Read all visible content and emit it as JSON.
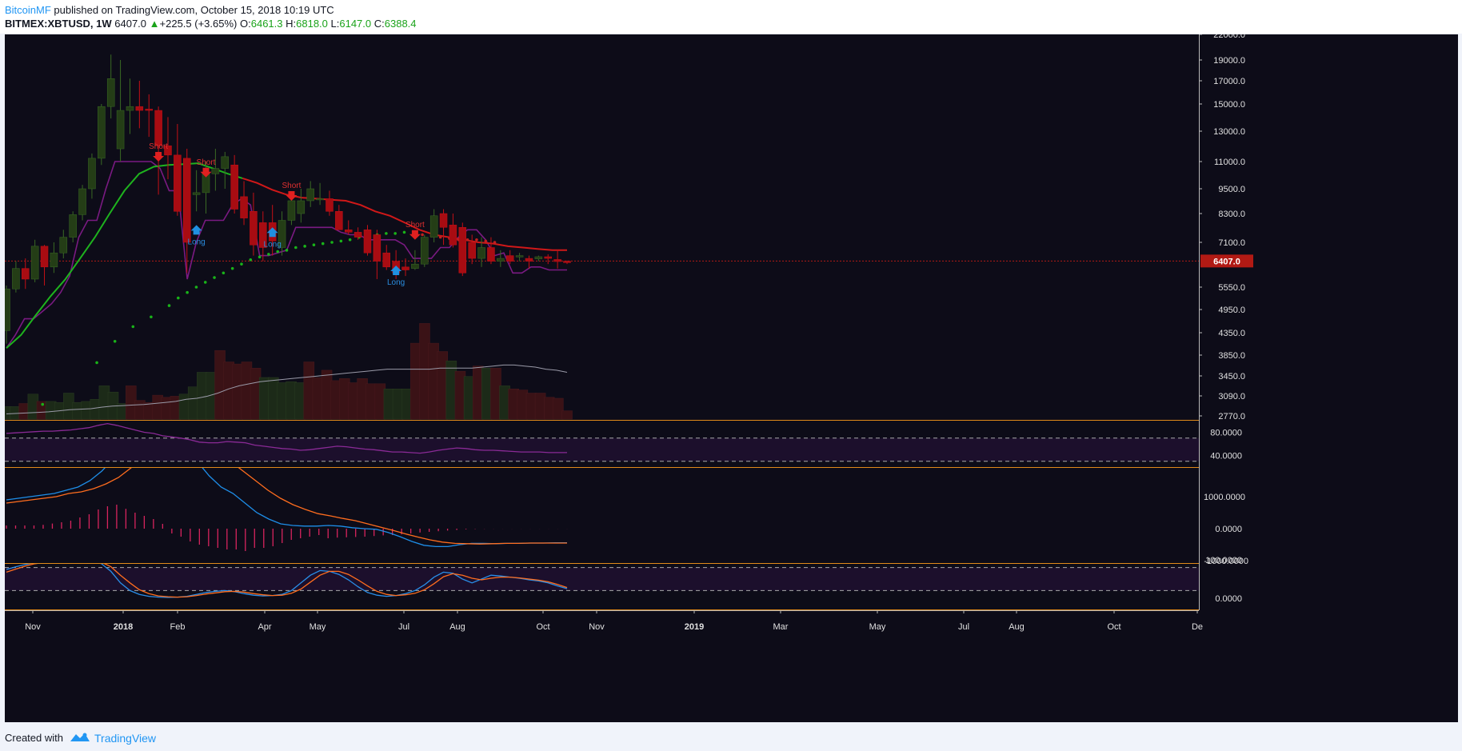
{
  "header": {
    "author": "BitcoinMF",
    "published_text": " published on TradingView.com, October 15, 2018 10:19 UTC",
    "symbol": "BITMEX:XBTUSD, 1W",
    "last": "6407.0",
    "change_arrow": "▲",
    "change": "+225.5 (+3.65%)",
    "o_label": "O:",
    "o_value": "6461.3",
    "h_label": "H:",
    "h_value": "6818.0",
    "l_label": "L:",
    "l_value": "6147.0",
    "c_label": "C:",
    "c_value": "6388.4"
  },
  "footer": {
    "created_with": "Created with",
    "brand": "TradingView"
  },
  "colors": {
    "bg": "#0d0c18",
    "up": "#2d4a1c",
    "down": "#b00c12",
    "ema_green": "#1eb31e",
    "ema_red": "#d01818",
    "ichimoku": "#7a1a82",
    "psar": "#19b319",
    "rsi": "#8a2a96",
    "macd": "#1e8ee8",
    "signal": "#ff6d1e",
    "hist": "#d8245e",
    "axis_text": "#e0e0e0",
    "price_tag": "#b21a14",
    "separator": "#e08a1a"
  },
  "chart_data": {
    "type": "candlestick",
    "symbol": "BITMEX:XBTUSD",
    "interval": "1W",
    "scale": "log",
    "ylim": [
      2600,
      22600
    ],
    "price_axis_ticks": [
      "22000.0",
      "19000.0",
      "17000.0",
      "15000.0",
      "13000.0",
      "11000.0",
      "9500.0",
      "8300.0",
      "7100.0",
      "6407.0",
      "5550.0",
      "4950.0",
      "4350.0",
      "3850.0",
      "3450.0",
      "3090.0",
      "2770.0"
    ],
    "x_axis_labels": [
      "Nov",
      "2018",
      "Feb",
      "Apr",
      "May",
      "Jul",
      "Aug",
      "Oct",
      "Nov",
      "2019",
      "Mar",
      "May",
      "Jul",
      "Aug",
      "Oct",
      "De"
    ],
    "last_price_label": "6407.0",
    "candles": [
      {
        "o": 4400,
        "h": 5600,
        "l": 4100,
        "c": 5500
      },
      {
        "o": 5500,
        "h": 6400,
        "l": 5400,
        "c": 6150
      },
      {
        "o": 6150,
        "h": 6500,
        "l": 5500,
        "c": 5800
      },
      {
        "o": 5800,
        "h": 7200,
        "l": 5700,
        "c": 6950
      },
      {
        "o": 6950,
        "h": 7000,
        "l": 5600,
        "c": 6200
      },
      {
        "o": 6200,
        "h": 7100,
        "l": 6000,
        "c": 6700
      },
      {
        "o": 6700,
        "h": 7600,
        "l": 6500,
        "c": 7300
      },
      {
        "o": 7300,
        "h": 8400,
        "l": 7100,
        "c": 8250
      },
      {
        "o": 8250,
        "h": 9700,
        "l": 8000,
        "c": 9500
      },
      {
        "o": 9500,
        "h": 11500,
        "l": 9000,
        "c": 11200
      },
      {
        "o": 11200,
        "h": 15000,
        "l": 10800,
        "c": 14800
      },
      {
        "o": 14800,
        "h": 19600,
        "l": 13900,
        "c": 17200
      },
      {
        "o": 11800,
        "h": 19000,
        "l": 11000,
        "c": 14500
      },
      {
        "o": 14500,
        "h": 17200,
        "l": 12800,
        "c": 14800
      },
      {
        "o": 14800,
        "h": 17000,
        "l": 13200,
        "c": 14500
      },
      {
        "o": 14600,
        "h": 15800,
        "l": 12600,
        "c": 14500
      },
      {
        "o": 14500,
        "h": 14800,
        "l": 9200,
        "c": 12000
      },
      {
        "o": 12000,
        "h": 14000,
        "l": 10000,
        "c": 11400
      },
      {
        "o": 11400,
        "h": 13500,
        "l": 8200,
        "c": 8400
      },
      {
        "o": 11200,
        "h": 11800,
        "l": 6000,
        "c": 7100
      },
      {
        "o": 9200,
        "h": 10500,
        "l": 8400,
        "c": 9300
      },
      {
        "o": 9300,
        "h": 11000,
        "l": 8300,
        "c": 10300
      },
      {
        "o": 10300,
        "h": 11800,
        "l": 9400,
        "c": 10600
      },
      {
        "o": 10600,
        "h": 11600,
        "l": 9500,
        "c": 11300
      },
      {
        "o": 10800,
        "h": 11400,
        "l": 8300,
        "c": 8500
      },
      {
        "o": 9100,
        "h": 9900,
        "l": 7800,
        "c": 8100
      },
      {
        "o": 8400,
        "h": 9300,
        "l": 6600,
        "c": 7000
      },
      {
        "o": 7900,
        "h": 8400,
        "l": 6400,
        "c": 6900
      },
      {
        "o": 7900,
        "h": 8700,
        "l": 6600,
        "c": 7150
      },
      {
        "o": 6900,
        "h": 8400,
        "l": 6600,
        "c": 8000
      },
      {
        "o": 8000,
        "h": 9100,
        "l": 7800,
        "c": 8900
      },
      {
        "o": 8300,
        "h": 9500,
        "l": 7900,
        "c": 8900
      },
      {
        "o": 8900,
        "h": 9900,
        "l": 8600,
        "c": 9500
      },
      {
        "o": 9000,
        "h": 9800,
        "l": 8700,
        "c": 9000
      },
      {
        "o": 9000,
        "h": 9400,
        "l": 8200,
        "c": 8400
      },
      {
        "o": 8400,
        "h": 8700,
        "l": 7700,
        "c": 7600
      },
      {
        "o": 7600,
        "h": 8000,
        "l": 7400,
        "c": 7500
      },
      {
        "o": 7500,
        "h": 7700,
        "l": 7200,
        "c": 7300
      },
      {
        "o": 7600,
        "h": 7800,
        "l": 6600,
        "c": 6700
      },
      {
        "o": 7400,
        "h": 7600,
        "l": 5800,
        "c": 6400
      },
      {
        "o": 6700,
        "h": 7000,
        "l": 6100,
        "c": 6200
      },
      {
        "o": 6400,
        "h": 6800,
        "l": 5800,
        "c": 6000
      },
      {
        "o": 6200,
        "h": 6500,
        "l": 5900,
        "c": 6100
      },
      {
        "o": 6150,
        "h": 6800,
        "l": 6100,
        "c": 6300
      },
      {
        "o": 6300,
        "h": 7400,
        "l": 6200,
        "c": 7300
      },
      {
        "o": 7300,
        "h": 8500,
        "l": 7100,
        "c": 8200
      },
      {
        "o": 8300,
        "h": 8500,
        "l": 7000,
        "c": 7700
      },
      {
        "o": 7800,
        "h": 8300,
        "l": 6900,
        "c": 7000
      },
      {
        "o": 7700,
        "h": 7900,
        "l": 5900,
        "c": 6000
      },
      {
        "o": 7100,
        "h": 7400,
        "l": 6300,
        "c": 6500
      },
      {
        "o": 6500,
        "h": 7300,
        "l": 6200,
        "c": 6900
      },
      {
        "o": 6900,
        "h": 7300,
        "l": 6300,
        "c": 6400
      },
      {
        "o": 6400,
        "h": 6800,
        "l": 6200,
        "c": 6500
      },
      {
        "o": 6600,
        "h": 6800,
        "l": 6300,
        "c": 6400
      },
      {
        "o": 6550,
        "h": 6700,
        "l": 6400,
        "c": 6600
      },
      {
        "o": 6500,
        "h": 6600,
        "l": 6150,
        "c": 6400
      },
      {
        "o": 6480,
        "h": 6600,
        "l": 6400,
        "c": 6560
      },
      {
        "o": 6560,
        "h": 6650,
        "l": 6300,
        "c": 6500
      },
      {
        "o": 6461.3,
        "h": 6818,
        "l": 6147,
        "c": 6388.4
      },
      {
        "o": 6400,
        "h": 6420,
        "l": 6300,
        "c": 6350
      }
    ],
    "volume": [
      0.12,
      0.12,
      0.15,
      0.24,
      0.17,
      0.17,
      0.16,
      0.25,
      0.16,
      0.17,
      0.19,
      0.32,
      0.26,
      0.15,
      0.32,
      0.18,
      0.16,
      0.23,
      0.21,
      0.22,
      0.24,
      0.31,
      0.45,
      0.45,
      0.66,
      0.55,
      0.53,
      0.55,
      0.49,
      0.4,
      0.4,
      0.35,
      0.36,
      0.35,
      0.55,
      0.4,
      0.47,
      0.37,
      0.39,
      0.35,
      0.39,
      0.34,
      0.34,
      0.29,
      0.29,
      0.29,
      0.73,
      0.92,
      0.73,
      0.65,
      0.56,
      0.46,
      0.41,
      0.51,
      0.49,
      0.49,
      0.32,
      0.29,
      0.28,
      0.25,
      0.25,
      0.21,
      0.2,
      0.08
    ],
    "volume_ma": [
      0.05,
      0.055,
      0.06,
      0.065,
      0.07,
      0.08,
      0.09,
      0.095,
      0.1,
      0.115,
      0.125,
      0.13,
      0.135,
      0.14,
      0.15,
      0.16,
      0.17,
      0.19,
      0.2,
      0.22,
      0.25,
      0.29,
      0.32,
      0.34,
      0.36,
      0.37,
      0.38,
      0.39,
      0.4,
      0.41,
      0.42,
      0.43,
      0.44,
      0.45,
      0.46,
      0.47,
      0.48,
      0.48,
      0.48,
      0.48,
      0.48,
      0.49,
      0.49,
      0.49,
      0.49,
      0.5,
      0.51,
      0.52,
      0.52,
      0.51,
      0.5,
      0.48,
      0.47,
      0.45
    ],
    "ema_values": [
      4000,
      4300,
      4800,
      5300,
      5800,
      6500,
      7300,
      8300,
      9400,
      10300,
      10700,
      10800,
      10850,
      10900,
      10600,
      10300,
      10050,
      9800,
      9450,
      9200,
      9050,
      9000,
      8950,
      8900,
      8700,
      8400,
      8200,
      7900,
      7600,
      7400,
      7300,
      7200,
      7100,
      7050,
      6950,
      6900,
      6850,
      6800,
      6800
    ],
    "ema_turns_red_at": 16,
    "psar_points": [
      [
        4,
        2950
      ],
      [
        10,
        3700
      ],
      [
        12,
        4150
      ],
      [
        14,
        4500
      ],
      [
        16,
        4750
      ],
      [
        18,
        5050
      ],
      [
        19,
        5250
      ],
      [
        20,
        5400
      ],
      [
        21,
        5550
      ],
      [
        22,
        5700
      ],
      [
        23,
        5850
      ],
      [
        24,
        6000
      ],
      [
        25,
        6150
      ],
      [
        26,
        6300
      ],
      [
        27,
        6450
      ],
      [
        28,
        6550
      ],
      [
        29,
        6650
      ],
      [
        30,
        6750
      ],
      [
        31,
        6800
      ],
      [
        32,
        6900
      ],
      [
        33,
        6950
      ],
      [
        34,
        7000
      ],
      [
        35,
        7050
      ],
      [
        36,
        7100
      ],
      [
        37,
        7150
      ],
      [
        38,
        7200
      ],
      [
        39,
        7300
      ],
      [
        40,
        7350
      ],
      [
        41,
        7400
      ],
      [
        42,
        7450
      ],
      [
        43,
        7450
      ],
      [
        44,
        7500
      ],
      [
        45,
        7450
      ],
      [
        46,
        7400
      ],
      [
        47,
        7350
      ],
      [
        48,
        7300
      ],
      [
        49,
        7250
      ],
      [
        50,
        7200
      ],
      [
        51,
        7200
      ],
      [
        52,
        7200
      ],
      [
        53,
        7150
      ],
      [
        54,
        7100
      ]
    ],
    "ichimoku_line": [
      [
        0,
        4000
      ],
      [
        1,
        4300
      ],
      [
        2,
        4700
      ],
      [
        3,
        4700
      ],
      [
        4,
        4900
      ],
      [
        5,
        5100
      ],
      [
        6,
        5400
      ],
      [
        7,
        5900
      ],
      [
        8,
        7300
      ],
      [
        9,
        8000
      ],
      [
        10,
        8000
      ],
      [
        11,
        9500
      ],
      [
        12,
        11000
      ],
      [
        13,
        11000
      ],
      [
        14,
        11000
      ],
      [
        15,
        11000
      ],
      [
        16,
        11000
      ],
      [
        17,
        10600
      ],
      [
        18,
        9400
      ],
      [
        19,
        9400
      ],
      [
        20,
        5800
      ],
      [
        21,
        7100
      ],
      [
        22,
        8000
      ],
      [
        23,
        8000
      ],
      [
        24,
        8000
      ],
      [
        25,
        8700
      ],
      [
        26,
        9000
      ],
      [
        27,
        8700
      ],
      [
        28,
        6600
      ],
      [
        29,
        6600
      ],
      [
        30,
        6700
      ],
      [
        31,
        6800
      ],
      [
        32,
        7700
      ],
      [
        33,
        7700
      ],
      [
        34,
        7700
      ],
      [
        35,
        7700
      ],
      [
        36,
        7700
      ],
      [
        37,
        7500
      ],
      [
        38,
        7400
      ],
      [
        39,
        7400
      ],
      [
        40,
        7200
      ],
      [
        41,
        7200
      ],
      [
        42,
        7200
      ],
      [
        43,
        7200
      ],
      [
        44,
        7000
      ],
      [
        45,
        6500
      ],
      [
        46,
        6500
      ],
      [
        47,
        6500
      ],
      [
        48,
        6900
      ],
      [
        49,
        6900
      ],
      [
        50,
        7300
      ],
      [
        51,
        7600
      ],
      [
        52,
        7600
      ],
      [
        53,
        7200
      ],
      [
        54,
        6600
      ],
      [
        55,
        6700
      ],
      [
        56,
        6000
      ],
      [
        57,
        6000
      ],
      [
        58,
        6200
      ],
      [
        59,
        6200
      ],
      [
        60,
        6100
      ],
      [
        61,
        6100
      ],
      [
        62,
        6100
      ]
    ],
    "signals": [
      {
        "type": "Short",
        "index": 16,
        "price": 11000
      },
      {
        "type": "Short",
        "index": 21,
        "price": 10100
      },
      {
        "type": "Short",
        "index": 30,
        "price": 8900
      },
      {
        "type": "Short",
        "index": 43,
        "price": 7200
      },
      {
        "type": "Long",
        "index": 20,
        "price": 7800
      },
      {
        "type": "Long",
        "index": 28,
        "price": 7700
      },
      {
        "type": "Long",
        "index": 41,
        "price": 6250
      }
    ],
    "rsi": {
      "ticks": [
        "80.0000",
        "40.0000"
      ],
      "upper": 70,
      "lower": 30,
      "values": [
        78,
        79,
        80,
        81,
        82,
        82,
        83,
        84,
        86,
        88,
        92,
        95,
        92,
        88,
        84,
        80,
        78,
        74,
        72,
        70,
        67,
        63,
        62,
        62,
        64,
        63,
        62,
        58,
        56,
        54,
        52,
        51,
        49,
        50,
        52,
        54,
        56,
        55,
        53,
        51,
        50,
        48,
        46,
        46,
        45,
        44,
        46,
        49,
        51,
        53,
        52,
        50,
        49,
        49,
        48,
        47,
        46,
        46,
        46,
        45,
        45,
        45
      ]
    },
    "macd": {
      "ticks": [
        "1000.0000",
        "0.0000",
        "-1000.0000"
      ],
      "macd_line": [
        900,
        950,
        1000,
        1050,
        1100,
        1200,
        1300,
        1500,
        1800,
        2200,
        2900,
        3500,
        3400,
        3100,
        2900,
        2600,
        2100,
        1650,
        1300,
        1100,
        800,
        500,
        300,
        150,
        100,
        80,
        80,
        100,
        80,
        30,
        0,
        -20,
        -120,
        -250,
        -400,
        -520,
        -560,
        -560,
        -500,
        -460,
        -460,
        -470,
        -460,
        -460,
        -450,
        -450,
        -440,
        -440
      ],
      "signal_line": [
        800,
        850,
        900,
        950,
        1000,
        1100,
        1150,
        1250,
        1400,
        1600,
        1900,
        2300,
        2600,
        2750,
        2800,
        2750,
        2650,
        2400,
        2100,
        1800,
        1500,
        1200,
        950,
        750,
        600,
        470,
        400,
        320,
        250,
        150,
        50,
        -50,
        -160,
        -260,
        -350,
        -420,
        -460,
        -470,
        -480,
        -470,
        -460,
        -460,
        -450,
        -450,
        -450,
        -450
      ],
      "histogram": [
        100,
        100,
        100,
        100,
        120,
        160,
        200,
        250,
        350,
        450,
        600,
        700,
        750,
        620,
        500,
        400,
        300,
        150,
        -150,
        -250,
        -400,
        -500,
        -550,
        -600,
        -650,
        -650,
        -700,
        -600,
        -600,
        -550,
        -450,
        -350,
        -300,
        -250,
        -200,
        -300,
        -280,
        -270,
        -260,
        -250,
        -230,
        -210,
        -200,
        -180,
        -150,
        -120,
        -100,
        -80,
        -60,
        -40,
        -20,
        -10,
        -5,
        -3,
        -2,
        -2,
        -2,
        -2,
        -2,
        -2,
        -2,
        -2
      ]
    },
    "stoch": {
      "ticks": [
        "100.0000",
        "0.0000"
      ],
      "upper": 80,
      "lower": 20,
      "k": [
        75,
        82,
        88,
        93,
        95,
        94,
        97,
        98,
        100,
        98,
        90,
        70,
        40,
        20,
        10,
        5,
        3,
        2,
        3,
        5,
        10,
        15,
        18,
        20,
        17,
        12,
        8,
        6,
        7,
        10,
        20,
        40,
        60,
        72,
        70,
        62,
        48,
        30,
        15,
        8,
        5,
        7,
        12,
        20,
        35,
        55,
        68,
        65,
        50,
        40,
        50,
        60,
        58,
        55,
        52,
        48,
        45,
        40,
        32,
        25
      ],
      "d": [
        68,
        76,
        84,
        90,
        93,
        95,
        96,
        97,
        98,
        98,
        94,
        82,
        60,
        40,
        22,
        12,
        6,
        4,
        3,
        4,
        7,
        11,
        14,
        17,
        18,
        16,
        12,
        9,
        7,
        8,
        13,
        24,
        42,
        60,
        70,
        70,
        62,
        48,
        32,
        18,
        10,
        7,
        9,
        13,
        22,
        38,
        56,
        64,
        60,
        52,
        48,
        52,
        55,
        55,
        53,
        50,
        47,
        43,
        36,
        28
      ]
    }
  }
}
